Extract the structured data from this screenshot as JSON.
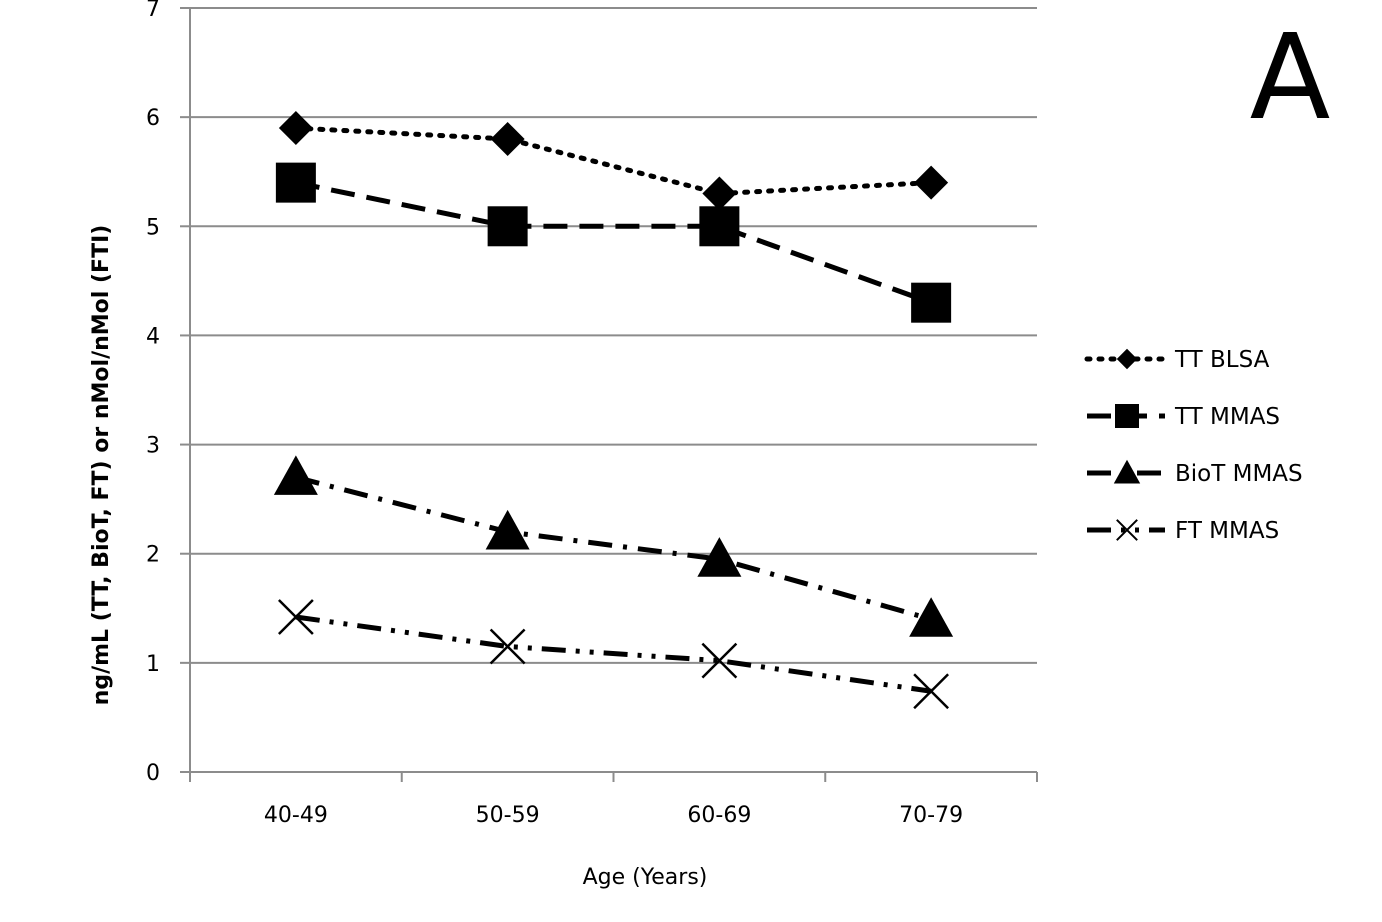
{
  "panel_label": "A",
  "chart_data": {
    "type": "line",
    "categories": [
      "40-49",
      "50-59",
      "60-69",
      "70-79"
    ],
    "xlabel": "Age (Years)",
    "ylabel": "ng/mL (TT, BioT, FT) or nMol/nMol (FTI)",
    "ylim": [
      0,
      7
    ],
    "yticks": [
      0,
      1,
      2,
      3,
      4,
      5,
      6,
      7
    ],
    "grid": true,
    "legend": "right",
    "series": [
      {
        "name": "TT BLSA",
        "values": [
          5.9,
          5.8,
          5.3,
          5.4
        ],
        "marker": "diamond",
        "dash": "dotted"
      },
      {
        "name": "TT MMAS",
        "values": [
          5.4,
          5.0,
          5.0,
          4.3
        ],
        "marker": "square",
        "dash": "dashed"
      },
      {
        "name": "BioT MMAS",
        "values": [
          2.7,
          2.2,
          1.95,
          1.4
        ],
        "marker": "triangle",
        "dash": "dash-dot"
      },
      {
        "name": "FT MMAS",
        "values": [
          1.42,
          1.15,
          1.02,
          0.74
        ],
        "marker": "x",
        "dash": "dash-dot-dot"
      }
    ]
  }
}
